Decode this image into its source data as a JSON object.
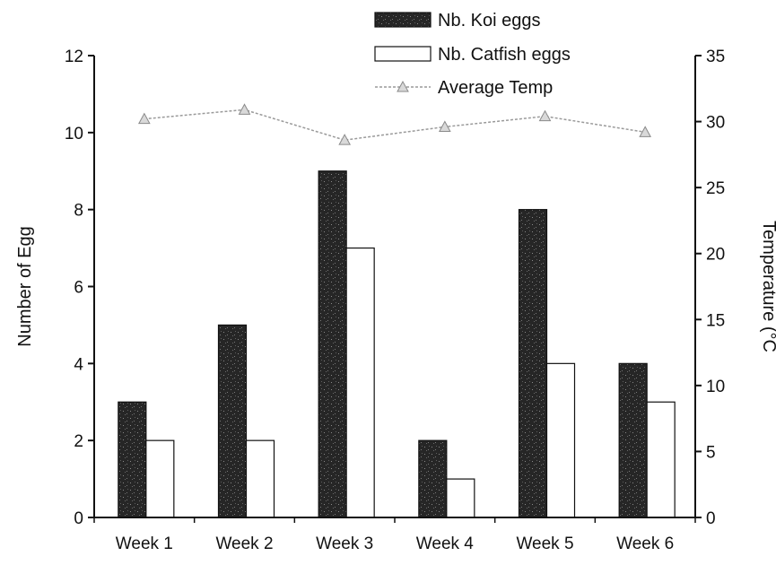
{
  "chart_data": {
    "type": "bar",
    "categories": [
      "Week 1",
      "Week 2",
      "Week 3",
      "Week 4",
      "Week 5",
      "Week 6"
    ],
    "series": [
      {
        "name": "Nb. Koi eggs",
        "kind": "bar",
        "axis": "left",
        "values": [
          3,
          5,
          9,
          2,
          8,
          4
        ],
        "fill": "#2b2b2b"
      },
      {
        "name": "Nb. Catfish eggs",
        "kind": "bar",
        "axis": "left",
        "values": [
          2,
          2,
          7,
          1,
          4,
          3
        ],
        "fill": "#ffffff"
      },
      {
        "name": "Average Temp",
        "kind": "line",
        "axis": "right",
        "values": [
          30.2,
          30.9,
          28.6,
          29.6,
          30.4,
          29.2
        ],
        "color": "#9a9a9a",
        "marker": "triangle"
      }
    ],
    "ylabel": "Number of Egg",
    "y2label": "Temperature (°C",
    "ylim": [
      0,
      12
    ],
    "yticks": [
      "0",
      "2",
      "4",
      "6",
      "8",
      "10",
      "12"
    ],
    "y2lim": [
      0,
      35
    ],
    "y2ticks": [
      "0",
      "5",
      "10",
      "15",
      "20",
      "25",
      "30",
      "35"
    ],
    "grid": false,
    "legend_position": "top-right"
  }
}
